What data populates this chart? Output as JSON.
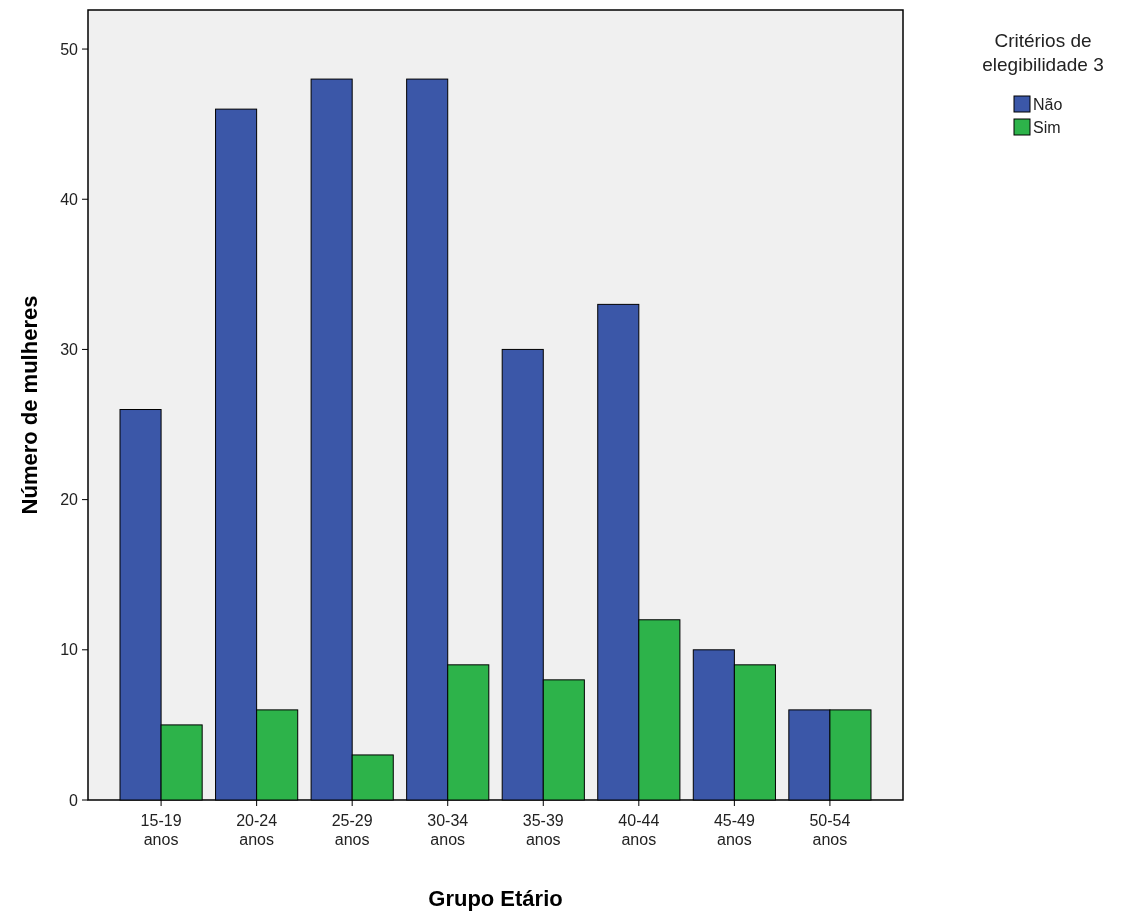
{
  "chart_data": {
    "type": "bar",
    "xlabel": "Grupo Etário",
    "ylabel": "Número de mulheres",
    "legend_title": "Critérios de elegibilidade 3",
    "categories": [
      "15-19 anos",
      "20-24 anos",
      "25-29 anos",
      "30-34 anos",
      "35-39 anos",
      "40-44 anos",
      "45-49 anos",
      "50-54 anos"
    ],
    "series": [
      {
        "name": "Não",
        "color": "#3b57a8",
        "values": [
          26,
          46,
          48,
          48,
          30,
          33,
          10,
          6
        ]
      },
      {
        "name": "Sim",
        "color": "#2db34a",
        "values": [
          5,
          6,
          3,
          9,
          8,
          12,
          9,
          6
        ]
      }
    ],
    "ylim": [
      0,
      52.6
    ],
    "yticks": [
      0,
      10,
      20,
      30,
      40,
      50
    ],
    "grid": false,
    "legend": "top right"
  }
}
